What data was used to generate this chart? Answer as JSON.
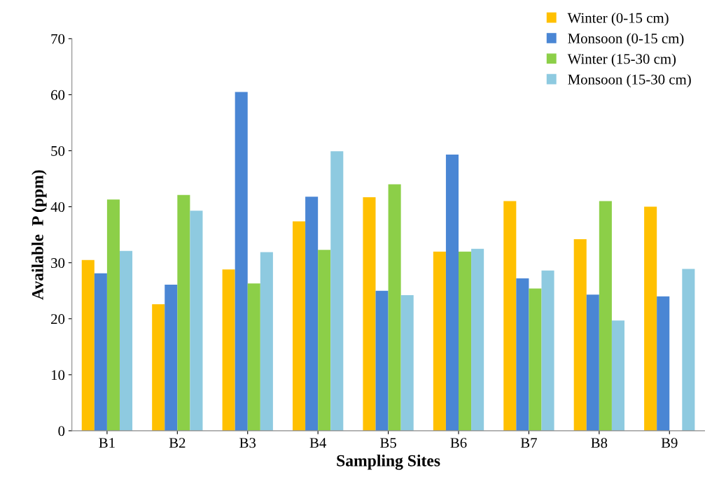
{
  "chart_data": {
    "type": "bar",
    "xlabel": "Sampling Sites",
    "ylabel": "Available  P (ppm)",
    "categories": [
      "B1",
      "B2",
      "B3",
      "B4",
      "B5",
      "B6",
      "B7",
      "B8",
      "B9"
    ],
    "series": [
      {
        "name": "Winter (0-15 cm)",
        "color": "#ffc000",
        "values": [
          30.5,
          22.6,
          28.8,
          37.4,
          41.7,
          32.0,
          41.0,
          34.2,
          40.0
        ]
      },
      {
        "name": "Monsoon (0-15 cm)",
        "color": "#4a86d4",
        "values": [
          28.1,
          26.1,
          60.5,
          41.8,
          25.0,
          49.3,
          27.2,
          24.3,
          24.0
        ]
      },
      {
        "name": "Winter (15-30 cm)",
        "color": "#8ccf48",
        "values": [
          41.3,
          42.1,
          26.3,
          32.3,
          44.0,
          32.0,
          25.4,
          41.0,
          null
        ]
      },
      {
        "name": "Monsoon (15-30 cm)",
        "color": "#8ecae0",
        "values": [
          32.1,
          39.3,
          31.9,
          49.9,
          24.2,
          32.5,
          28.6,
          19.7,
          28.9
        ]
      }
    ],
    "ylim": [
      0,
      70
    ],
    "yticks": [
      0,
      10,
      20,
      30,
      40,
      50,
      60,
      70
    ],
    "grid": false,
    "legend": "top right"
  }
}
